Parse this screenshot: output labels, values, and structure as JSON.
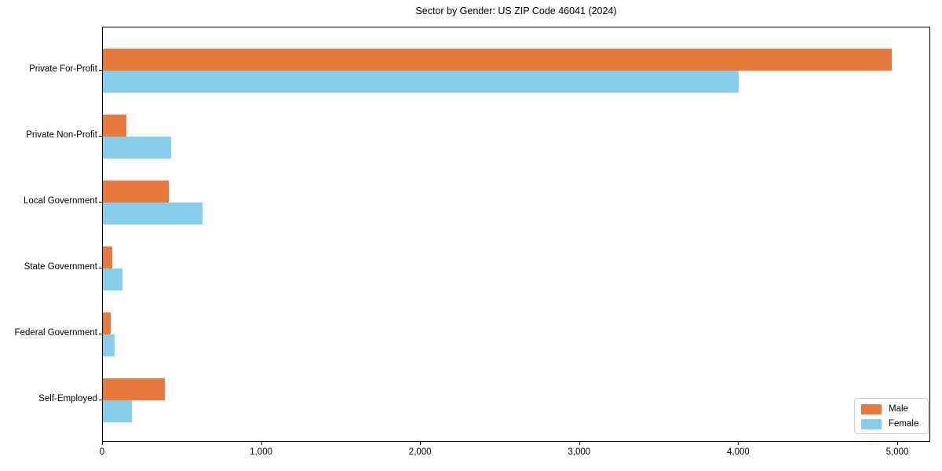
{
  "title": "Sector by Gender: US ZIP Code 46041 (2024)",
  "chart_data": {
    "type": "bar",
    "orientation": "horizontal",
    "title": "Sector by Gender: US ZIP Code 46041 (2024)",
    "categories": [
      "Private For-Profit",
      "Private Non-Profit",
      "Local Government",
      "State Government",
      "Federal Government",
      "Self-Employed"
    ],
    "series": [
      {
        "name": "Male",
        "color": "#e8793c",
        "values": [
          4960,
          150,
          415,
          57,
          48,
          390
        ]
      },
      {
        "name": "Female",
        "color": "#87ceeb",
        "values": [
          4000,
          430,
          625,
          121,
          76,
          185
        ]
      }
    ],
    "xlabel": "",
    "ylabel": "",
    "xlim": [
      0,
      5200
    ],
    "x_ticks": [
      0,
      1000,
      2000,
      3000,
      4000,
      5000
    ],
    "x_tick_labels": [
      "0",
      "1,000",
      "2,000",
      "3,000",
      "4,000",
      "5,000"
    ],
    "grid": false,
    "legend_position": "lower right",
    "bar_color_male": "#e8793c",
    "bar_color_female": "#87ceeb"
  },
  "legend": {
    "items": [
      {
        "label": "Male",
        "color": "#e8793c"
      },
      {
        "label": "Female",
        "color": "#87ceeb"
      }
    ]
  }
}
